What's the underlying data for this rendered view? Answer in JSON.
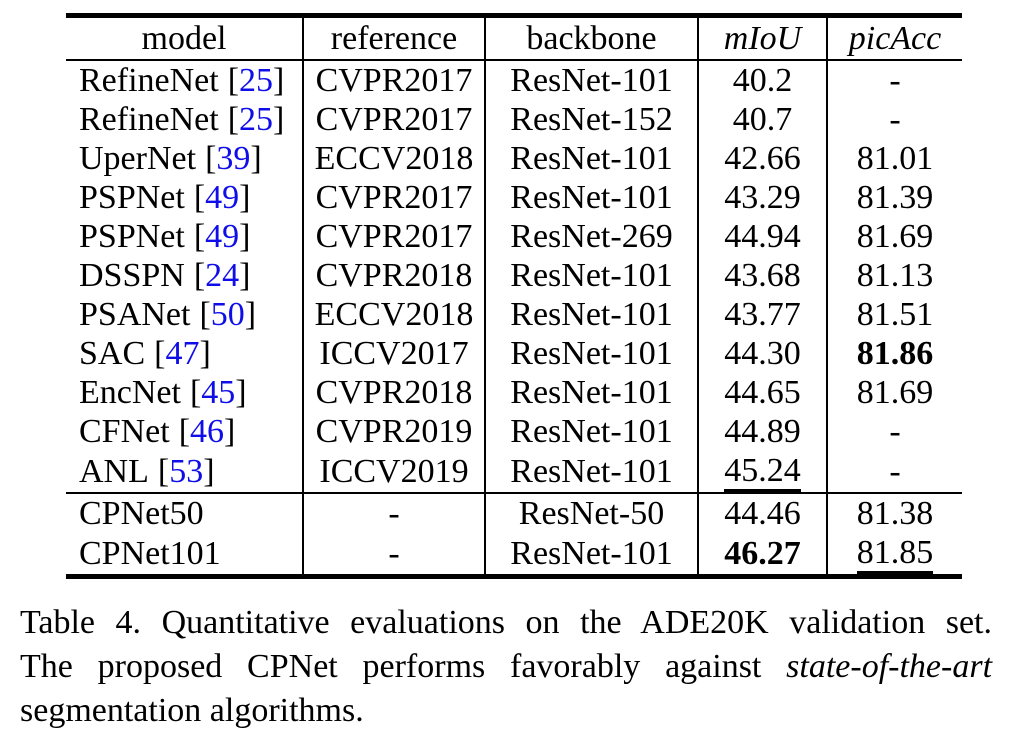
{
  "colors": {
    "citation_blue": "#0f0ee8",
    "text": "#000000",
    "background": "#ffffff"
  },
  "punct": {
    "cite_open": "[",
    "cite_close": "]"
  },
  "table": {
    "headers": [
      "model",
      "reference",
      "backbone",
      "mIoU",
      "picAcc"
    ],
    "rows": [
      {
        "model": "RefineNet",
        "cite": "25",
        "reference": "CVPR2017",
        "backbone": "ResNet-101",
        "miou": "40.2",
        "picacc": "-"
      },
      {
        "model": "RefineNet",
        "cite": "25",
        "reference": "CVPR2017",
        "backbone": "ResNet-152",
        "miou": "40.7",
        "picacc": "-"
      },
      {
        "model": "UperNet",
        "cite": "39",
        "reference": "ECCV2018",
        "backbone": "ResNet-101",
        "miou": "42.66",
        "picacc": "81.01"
      },
      {
        "model": "PSPNet",
        "cite": "49",
        "reference": "CVPR2017",
        "backbone": "ResNet-101",
        "miou": "43.29",
        "picacc": "81.39"
      },
      {
        "model": "PSPNet",
        "cite": "49",
        "reference": "CVPR2017",
        "backbone": "ResNet-269",
        "miou": "44.94",
        "picacc": "81.69"
      },
      {
        "model": "DSSPN",
        "cite": "24",
        "reference": "CVPR2018",
        "backbone": "ResNet-101",
        "miou": "43.68",
        "picacc": "81.13"
      },
      {
        "model": "PSANet",
        "cite": "50",
        "reference": "ECCV2018",
        "backbone": "ResNet-101",
        "miou": "43.77",
        "picacc": "81.51"
      },
      {
        "model": "SAC",
        "cite": "47",
        "reference": "ICCV2017",
        "backbone": "ResNet-101",
        "miou": "44.30",
        "picacc": "81.86",
        "picacc_style": "bold"
      },
      {
        "model": "EncNet",
        "cite": "45",
        "reference": "CVPR2018",
        "backbone": "ResNet-101",
        "miou": "44.65",
        "picacc": "81.69"
      },
      {
        "model": "CFNet",
        "cite": "46",
        "reference": "CVPR2019",
        "backbone": "ResNet-101",
        "miou": "44.89",
        "picacc": "-"
      },
      {
        "model": "ANL",
        "cite": "53",
        "reference": "ICCV2019",
        "backbone": "ResNet-101",
        "miou": "45.24",
        "miou_style": "underline",
        "picacc": "-"
      },
      {
        "model": "CPNet50",
        "cite": null,
        "reference": "-",
        "backbone": "ResNet-50",
        "miou": "44.46",
        "picacc": "81.38",
        "section": "ours"
      },
      {
        "model": "CPNet101",
        "cite": null,
        "reference": "-",
        "backbone": "ResNet-101",
        "miou": "46.27",
        "miou_style": "bold",
        "picacc": "81.85",
        "picacc_style": "underline",
        "section": "ours"
      }
    ]
  },
  "caption": {
    "line1": "Table 4. Quantitative evaluations on the ADE20K validation set.",
    "line2_normal": "The proposed CPNet performs favorably against",
    "line2_italic": "state-of-the-art",
    "line3": "segmentation algorithms."
  }
}
